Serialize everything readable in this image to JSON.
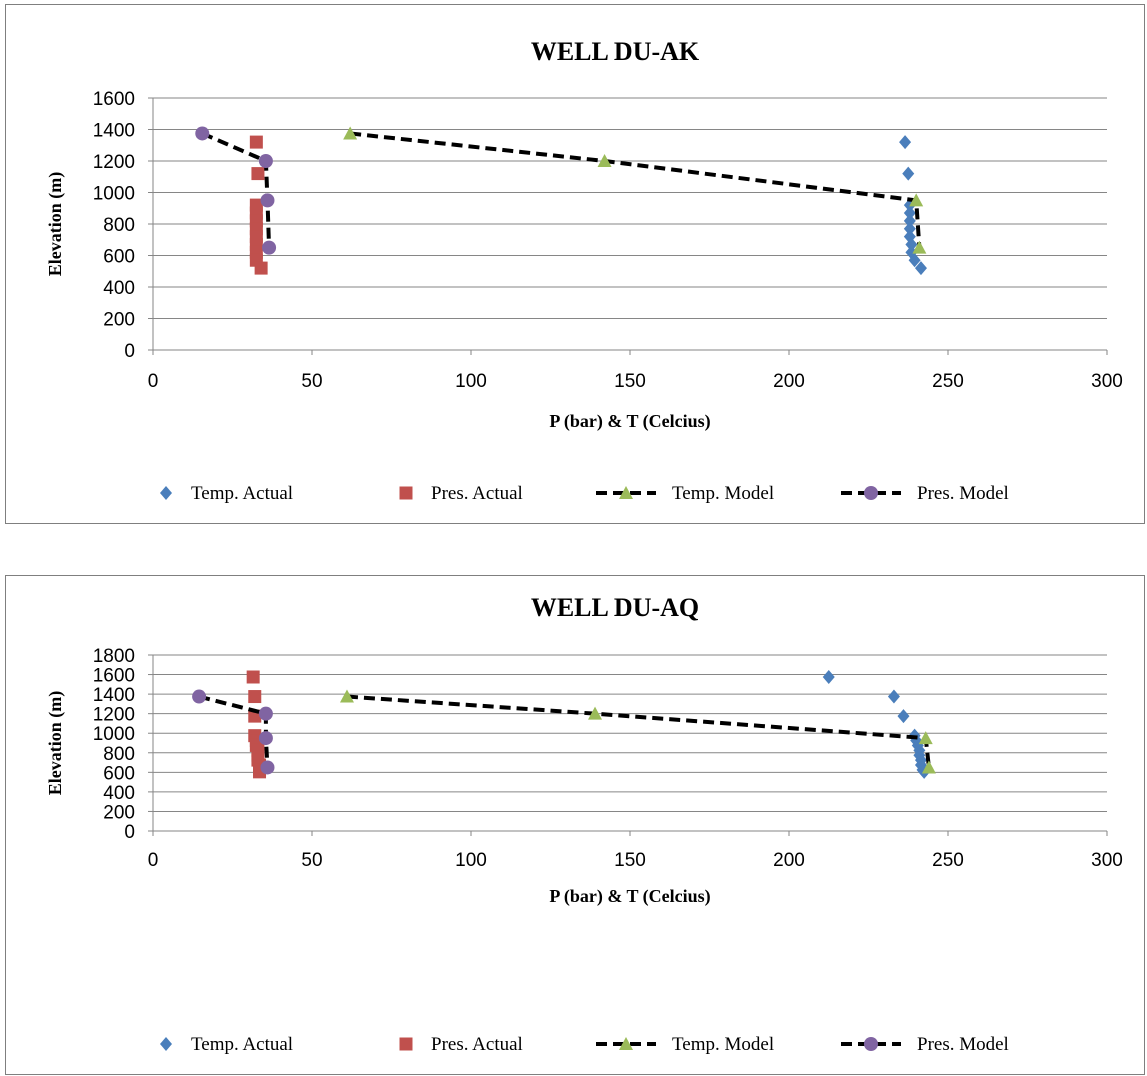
{
  "chart_data": [
    {
      "type": "scatter",
      "title": "WELL DU-AK",
      "xlabel": "P (bar) & T (Celcius)",
      "ylabel": "Elevation (m)",
      "xlim": [
        0,
        300
      ],
      "ylim": [
        0,
        1600
      ],
      "xticks": [
        0,
        50,
        100,
        150,
        200,
        250,
        300
      ],
      "yticks": [
        0,
        200,
        400,
        600,
        800,
        1000,
        1200,
        1400,
        1600
      ],
      "grid": "horizontal",
      "legend_position": "bottom",
      "series": [
        {
          "name": "Temp. Actual",
          "marker": "diamond",
          "color": "#4a7ebb",
          "line": false,
          "points": [
            [
              236.5,
              1320
            ],
            [
              237.5,
              1120
            ],
            [
              238,
              920
            ],
            [
              238,
              870
            ],
            [
              238,
              820
            ],
            [
              238,
              770
            ],
            [
              238,
              720
            ],
            [
              238.5,
              670
            ],
            [
              238.5,
              620
            ],
            [
              239.5,
              570
            ],
            [
              241.5,
              520
            ]
          ]
        },
        {
          "name": "Pres. Actual",
          "marker": "square",
          "color": "#c0504d",
          "line": false,
          "points": [
            [
              32.5,
              1320
            ],
            [
              33,
              1120
            ],
            [
              32.5,
              920
            ],
            [
              32.5,
              870
            ],
            [
              32.5,
              820
            ],
            [
              32.5,
              770
            ],
            [
              32.5,
              720
            ],
            [
              32.5,
              670
            ],
            [
              32.5,
              620
            ],
            [
              32.5,
              570
            ],
            [
              34,
              520
            ]
          ]
        },
        {
          "name": "Temp. Model",
          "marker": "triangle",
          "color": "#9bbb59",
          "line": true,
          "points": [
            [
              62,
              1375
            ],
            [
              142,
              1200
            ],
            [
              240,
              950
            ],
            [
              241,
              650
            ]
          ]
        },
        {
          "name": "Pres. Model",
          "marker": "circle",
          "color": "#8064a2",
          "line": true,
          "points": [
            [
              15.5,
              1375
            ],
            [
              35.5,
              1200
            ],
            [
              36,
              950
            ],
            [
              36.5,
              650
            ]
          ]
        }
      ]
    },
    {
      "type": "scatter",
      "title": "WELL DU-AQ",
      "xlabel": "P (bar) & T (Celcius)",
      "ylabel": "Elevation (m)",
      "xlim": [
        0,
        300
      ],
      "ylim": [
        0,
        1800
      ],
      "xticks": [
        0,
        50,
        100,
        150,
        200,
        250,
        300
      ],
      "yticks": [
        0,
        200,
        400,
        600,
        800,
        1000,
        1200,
        1400,
        1600,
        1800
      ],
      "grid": "horizontal",
      "legend_position": "bottom",
      "series": [
        {
          "name": "Temp. Actual",
          "marker": "diamond",
          "color": "#4a7ebb",
          "line": false,
          "points": [
            [
              212.5,
              1575
            ],
            [
              233,
              1375
            ],
            [
              236,
              1175
            ],
            [
              239.5,
              975
            ],
            [
              240,
              925
            ],
            [
              240.5,
              875
            ],
            [
              241,
              825
            ],
            [
              241,
              775
            ],
            [
              241.5,
              725
            ],
            [
              241.5,
              675
            ],
            [
              242,
              625
            ],
            [
              242.5,
              605
            ]
          ]
        },
        {
          "name": "Pres. Actual",
          "marker": "square",
          "color": "#c0504d",
          "line": false,
          "points": [
            [
              31.5,
              1575
            ],
            [
              32,
              1375
            ],
            [
              32,
              1175
            ],
            [
              32,
              975
            ],
            [
              32.5,
              925
            ],
            [
              32.5,
              875
            ],
            [
              33,
              825
            ],
            [
              33,
              775
            ],
            [
              33,
              725
            ],
            [
              33.5,
              675
            ],
            [
              33.5,
              625
            ],
            [
              33.5,
              605
            ]
          ]
        },
        {
          "name": "Temp. Model",
          "marker": "triangle",
          "color": "#9bbb59",
          "line": true,
          "points": [
            [
              61,
              1375
            ],
            [
              139,
              1200
            ],
            [
              243,
              950
            ],
            [
              244,
              650
            ]
          ]
        },
        {
          "name": "Pres. Model",
          "marker": "circle",
          "color": "#8064a2",
          "line": true,
          "points": [
            [
              14.5,
              1375
            ],
            [
              35.5,
              1200
            ],
            [
              35.5,
              950
            ],
            [
              36,
              650
            ]
          ]
        }
      ]
    }
  ]
}
